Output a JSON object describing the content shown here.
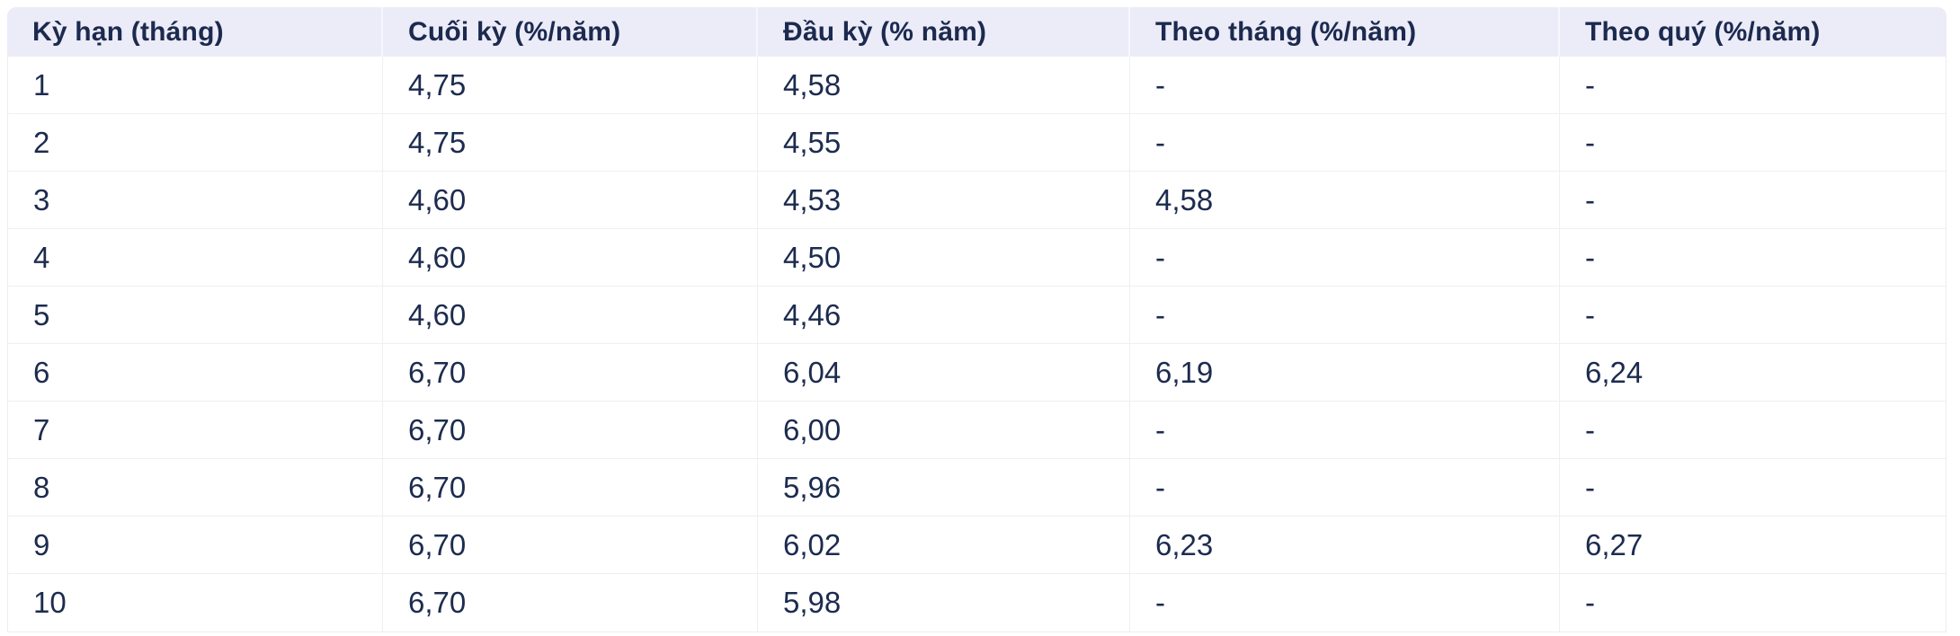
{
  "colors": {
    "page_background": "#FFFFFF",
    "header_background": "#ECEBF8",
    "text_navy": "#1C2B4F",
    "grid_border": "#EFEFF1"
  },
  "table": {
    "headers": [
      "Kỳ hạn (tháng)",
      "Cuối kỳ (%/năm)",
      "Đầu kỳ (% năm)",
      "Theo tháng (%/năm)",
      "Theo quý (%/năm)"
    ],
    "rows": [
      [
        "1",
        "4,75",
        "4,58",
        "-",
        "-"
      ],
      [
        "2",
        "4,75",
        "4,55",
        "-",
        "-"
      ],
      [
        "3",
        "4,60",
        "4,53",
        "4,58",
        "-"
      ],
      [
        "4",
        "4,60",
        "4,50",
        "-",
        "-"
      ],
      [
        "5",
        "4,60",
        "4,46",
        "-",
        "-"
      ],
      [
        "6",
        "6,70",
        "6,04",
        "6,19",
        "6,24"
      ],
      [
        "7",
        "6,70",
        "6,00",
        "-",
        "-"
      ],
      [
        "8",
        "6,70",
        "5,96",
        "-",
        "-"
      ],
      [
        "9",
        "6,70",
        "6,02",
        "6,23",
        "6,27"
      ],
      [
        "10",
        "6,70",
        "5,98",
        "-",
        "-"
      ]
    ]
  }
}
